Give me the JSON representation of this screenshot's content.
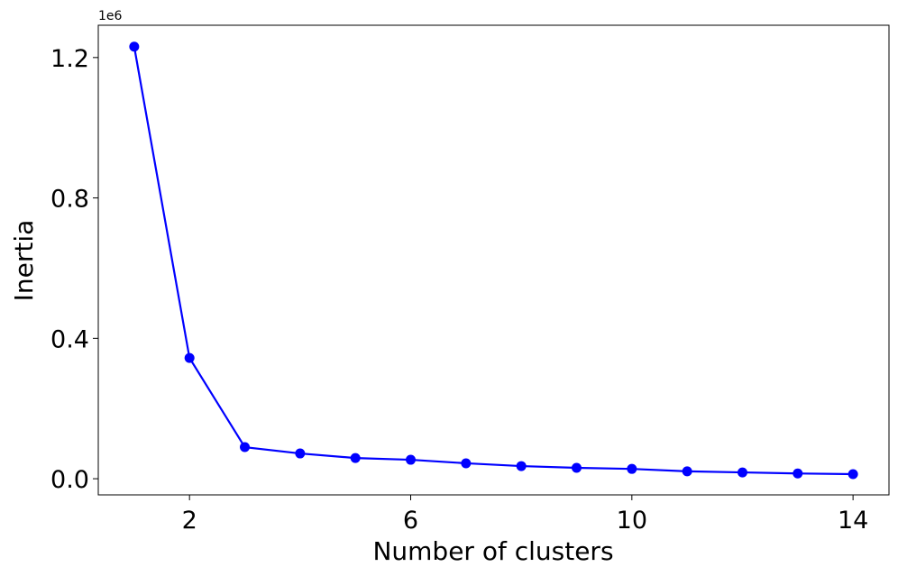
{
  "chart_data": {
    "type": "line",
    "xlabel": "Number of clusters",
    "ylabel": "Inertia",
    "y_offset_label": "1e6",
    "x": [
      1,
      2,
      3,
      4,
      5,
      6,
      7,
      8,
      9,
      10,
      11,
      12,
      13,
      14
    ],
    "series": [
      {
        "color": "#0000ff",
        "values": [
          1.231,
          0.344,
          0.09,
          0.072,
          0.059,
          0.054,
          0.044,
          0.036,
          0.031,
          0.028,
          0.021,
          0.018,
          0.015,
          0.013
        ]
      }
    ],
    "xlim": [
      0.35,
      14.65
    ],
    "xticks": [
      2,
      6,
      10,
      14
    ],
    "ylim": [
      -0.046,
      1.292
    ],
    "yticks": [
      {
        "value": 0,
        "label": "0.0"
      },
      0.4,
      0.8,
      1.2
    ],
    "grid": false,
    "marker": "circle"
  }
}
